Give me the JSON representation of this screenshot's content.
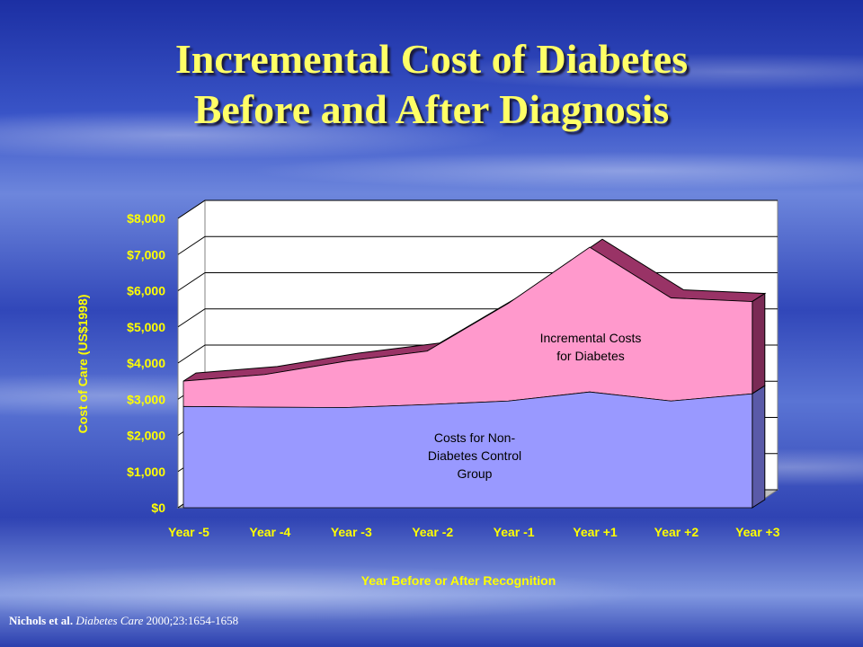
{
  "slide": {
    "title_line1": "Incremental Cost of Diabetes",
    "title_line2": "Before and After Diagnosis",
    "citation_authors": "Nichols et al.",
    "citation_journal": "Diabetes Care",
    "citation_ref": "2000;23:1654-1658"
  },
  "colors": {
    "title": "#ffff66",
    "control_area": "#9999ff",
    "incremental_area": "#ff99cc",
    "incremental_top": "#993366",
    "axis_text": "#ffff00",
    "plot_background": "#ffffff"
  },
  "chart_data": {
    "type": "area",
    "style": "3d-stacked",
    "xlabel": "Year Before or After Recognition",
    "ylabel": "Cost of Care (US$1998)",
    "ylim": [
      0,
      8000
    ],
    "yticks": [
      "$0",
      "$1,000",
      "$2,000",
      "$3,000",
      "$4,000",
      "$5,000",
      "$6,000",
      "$7,000",
      "$8,000"
    ],
    "categories": [
      "Year -5",
      "Year -4",
      "Year -3",
      "Year -2",
      "Year -1",
      "Year +1",
      "Year +2",
      "Year +3"
    ],
    "grid": true,
    "series": [
      {
        "values": [
          2800,
          2780,
          2770,
          2850,
          2950,
          3200,
          2950,
          3150
        ]
      },
      {
        "values": [
          700,
          900,
          1280,
          1480,
          2700,
          4000,
          2850,
          2550
        ]
      }
    ],
    "annotations": [
      {
        "lines": [
          "Incremental Costs",
          "for Diabetes"
        ]
      },
      {
        "lines": [
          "Costs for Non-",
          "Diabetes Control",
          "Group"
        ]
      }
    ]
  }
}
